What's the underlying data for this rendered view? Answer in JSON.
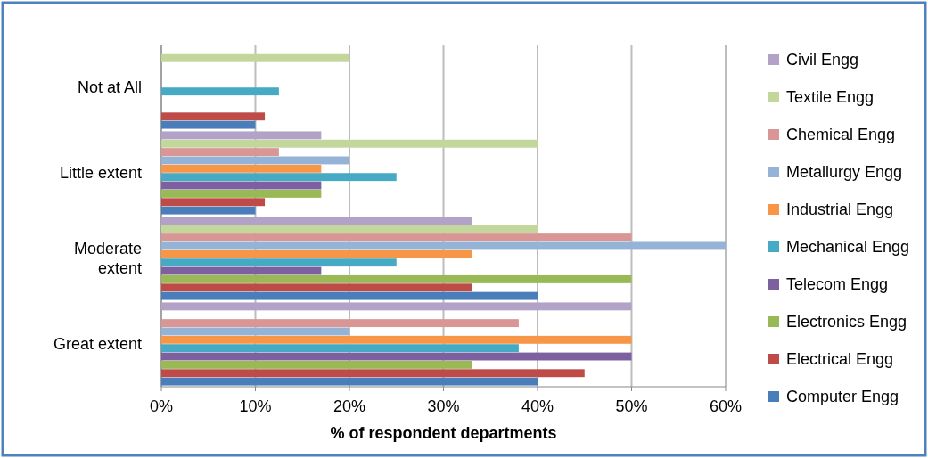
{
  "chart_data": {
    "type": "bar",
    "orientation": "horizontal",
    "xlabel": "% of respondent departments",
    "categories": [
      "Not at All",
      "Little extent",
      "Moderate\nextent",
      "Great extent"
    ],
    "series": [
      {
        "name": "Computer Engg",
        "color": "#4a7ebb",
        "values": [
          10,
          10,
          40,
          40
        ]
      },
      {
        "name": "Electrical Engg",
        "color": "#be4b48",
        "values": [
          11,
          11,
          33,
          45
        ]
      },
      {
        "name": "Electronics Engg",
        "color": "#98b954",
        "values": [
          0,
          17,
          50,
          33
        ]
      },
      {
        "name": "Telecom Engg",
        "color": "#7d60a0",
        "values": [
          0,
          17,
          17,
          50
        ]
      },
      {
        "name": "Mechanical Engg",
        "color": "#46aac5",
        "values": [
          12.5,
          25,
          25,
          38
        ]
      },
      {
        "name": "Industrial Engg",
        "color": "#f79646",
        "values": [
          0,
          17,
          33,
          50
        ]
      },
      {
        "name": "Metallurgy Engg",
        "color": "#95b3d7",
        "values": [
          0,
          20,
          60,
          20
        ]
      },
      {
        "name": "Chemical Engg",
        "color": "#d99694",
        "values": [
          0,
          12.5,
          50,
          38
        ]
      },
      {
        "name": "Textile Engg",
        "color": "#c3d69b",
        "values": [
          20,
          40,
          40,
          0
        ]
      },
      {
        "name": "Civil Engg",
        "color": "#b3a2c7",
        "values": [
          0,
          17,
          33,
          50
        ]
      }
    ],
    "xlim": [
      0,
      60
    ],
    "xticks": [
      {
        "value": 0,
        "label": "0%"
      },
      {
        "value": 10,
        "label": "10%"
      },
      {
        "value": 20,
        "label": "20%"
      },
      {
        "value": 30,
        "label": "30%"
      },
      {
        "value": 40,
        "label": "40%"
      },
      {
        "value": 50,
        "label": "50%"
      },
      {
        "value": 60,
        "label": "60%"
      }
    ],
    "grid": "x",
    "legend": "right"
  }
}
